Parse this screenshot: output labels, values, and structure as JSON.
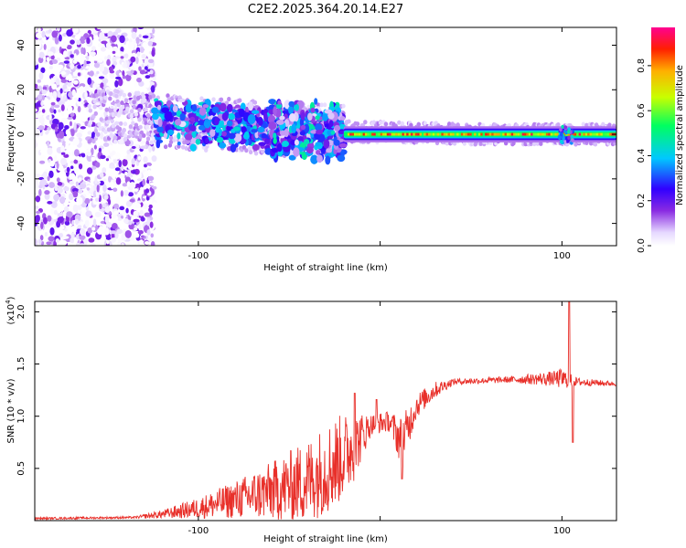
{
  "figure": {
    "title": "C2E2.2025.364.20.14.E27"
  },
  "chart_data": [
    {
      "type": "heatmap",
      "title": "C2E2.2025.364.20.14.E27",
      "xlabel": "Height of straight line (km)",
      "ylabel": "Frequency (Hz)",
      "xlim": [
        -190,
        130
      ],
      "ylim": [
        -50,
        48
      ],
      "x_ticks": [
        -100,
        0,
        100
      ],
      "x_tick_labels": [
        "-100",
        "",
        "100"
      ],
      "y_ticks": [
        -40,
        -20,
        0,
        20,
        40
      ],
      "y_tick_labels": [
        "-40",
        "-20",
        "0",
        "20",
        "40"
      ],
      "colorbar": {
        "label": "Normalized spectral amplitude",
        "range": [
          0.0,
          0.97
        ],
        "ticks": [
          0.0,
          0.2,
          0.4,
          0.6,
          0.8
        ],
        "tick_labels": [
          "0.0",
          "0.2",
          "0.4",
          "0.6",
          "0.8"
        ],
        "colormap": [
          "#ffffff",
          "#e6d9ff",
          "#8a2be2",
          "#3000ff",
          "#00c8ff",
          "#00ff60",
          "#c8ff00",
          "#ffb000",
          "#ff2000",
          "#ff0090"
        ]
      },
      "regions": [
        {
          "x_range": [
            -190,
            -124
          ],
          "y_range": [
            -50,
            48
          ],
          "density": 0.9,
          "amplitude": [
            0.0,
            0.22
          ]
        },
        {
          "x_range": [
            -124,
            -60
          ],
          "y_range": [
            -10,
            12
          ],
          "density": 0.7,
          "amplitude": [
            0.05,
            0.45
          ]
        },
        {
          "x_range": [
            -60,
            -20
          ],
          "y_range": [
            -12,
            16
          ],
          "density": 0.6,
          "amplitude": [
            0.05,
            0.5
          ]
        },
        {
          "x_range": [
            -20,
            130
          ],
          "y_range": [
            -3,
            3
          ],
          "density": 1.0,
          "amplitude": [
            0.3,
            0.97
          ]
        }
      ],
      "ridge_center_hz": [
        {
          "x": -140,
          "y": 8
        },
        {
          "x": -110,
          "y": 5
        },
        {
          "x": -80,
          "y": 4
        },
        {
          "x": -55,
          "y": 2
        },
        {
          "x": -30,
          "y": 2
        },
        {
          "x": -10,
          "y": 1
        },
        {
          "x": 10,
          "y": 1
        },
        {
          "x": 50,
          "y": 0
        },
        {
          "x": 100,
          "y": 0
        },
        {
          "x": 130,
          "y": 0
        }
      ]
    },
    {
      "type": "line",
      "xlabel": "Height of straight line (km)",
      "ylabel": "SNR (10 * v/v)",
      "y_multiplier": "(x10",
      "y_multiplier_exp": "4",
      "y_multiplier_close": ")",
      "xlim": [
        -190,
        130
      ],
      "ylim": [
        0,
        2.1
      ],
      "x_ticks": [
        -100,
        0,
        100
      ],
      "x_tick_labels": [
        "-100",
        "",
        "100"
      ],
      "y_ticks": [
        0.5,
        1.0,
        1.5,
        2.0
      ],
      "y_tick_labels": [
        "0.5",
        "1.0",
        "1.5",
        "2.0"
      ],
      "series": [
        {
          "name": "SNR",
          "color": "#e8302a",
          "envelope": [
            {
              "x": -190,
              "mean": 0.02,
              "noise": 0.01
            },
            {
              "x": -135,
              "mean": 0.03,
              "noise": 0.01
            },
            {
              "x": -120,
              "mean": 0.06,
              "noise": 0.04
            },
            {
              "x": -100,
              "mean": 0.12,
              "noise": 0.1
            },
            {
              "x": -80,
              "mean": 0.2,
              "noise": 0.18
            },
            {
              "x": -60,
              "mean": 0.28,
              "noise": 0.28
            },
            {
              "x": -40,
              "mean": 0.38,
              "noise": 0.4
            },
            {
              "x": -25,
              "mean": 0.55,
              "noise": 0.45
            },
            {
              "x": -15,
              "mean": 0.7,
              "noise": 0.35
            },
            {
              "x": -5,
              "mean": 0.92,
              "noise": 0.1
            },
            {
              "x": 5,
              "mean": 0.95,
              "noise": 0.1
            },
            {
              "x": 12,
              "mean": 0.75,
              "noise": 0.25
            },
            {
              "x": 20,
              "mean": 1.1,
              "noise": 0.12
            },
            {
              "x": 30,
              "mean": 1.25,
              "noise": 0.08
            },
            {
              "x": 40,
              "mean": 1.33,
              "noise": 0.03
            },
            {
              "x": 70,
              "mean": 1.35,
              "noise": 0.03
            },
            {
              "x": 95,
              "mean": 1.36,
              "noise": 0.07
            },
            {
              "x": 100,
              "mean": 1.36,
              "noise": 0.1
            },
            {
              "x": 108,
              "mean": 1.33,
              "noise": 0.04
            },
            {
              "x": 130,
              "mean": 1.31,
              "noise": 0.02
            }
          ],
          "spikes": [
            {
              "x": 104,
              "y": 2.1
            },
            {
              "x": 106,
              "y": 0.75
            },
            {
              "x": 12,
              "y": 0.4
            },
            {
              "x": -14,
              "y": 1.22
            },
            {
              "x": -2,
              "y": 1.16
            }
          ]
        }
      ]
    }
  ]
}
